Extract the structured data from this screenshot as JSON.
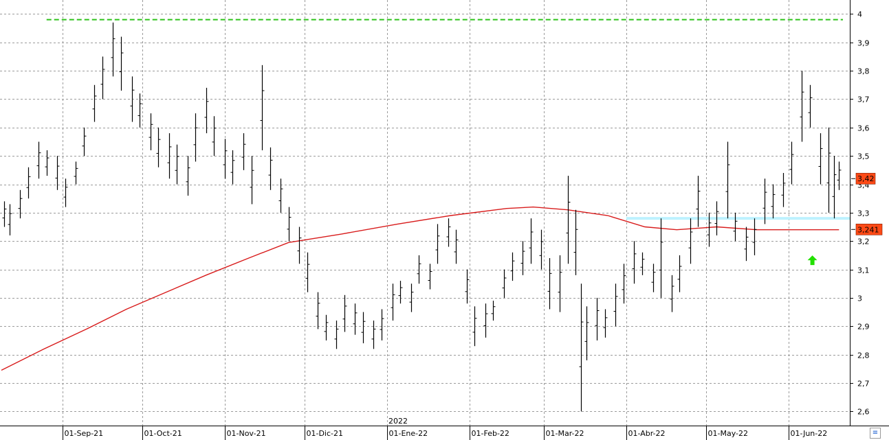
{
  "chart_data": {
    "type": "ohlc",
    "title": "",
    "xlabel": "",
    "ylabel": "",
    "ylim": [
      2.55,
      4.03
    ],
    "y_ticks": [
      "2,6",
      "2,7",
      "2,8",
      "2,9",
      "3",
      "3,1",
      "3,2",
      "3,3",
      "3,4",
      "3,5",
      "3,6",
      "3,7",
      "3,8",
      "3,9",
      "4"
    ],
    "y_tick_values": [
      2.6,
      2.7,
      2.8,
      2.9,
      3.0,
      3.1,
      3.2,
      3.3,
      3.4,
      3.5,
      3.6,
      3.7,
      3.8,
      3.9,
      4.0
    ],
    "x_start_date": "2021-08-09",
    "x_end_date": "2022-06-22",
    "x_ticks": [
      {
        "date": "2021-09-01",
        "label": "01-Sep-21"
      },
      {
        "date": "2021-10-01",
        "label": "01-Oct-21"
      },
      {
        "date": "2021-11-01",
        "label": "01-Nov-21"
      },
      {
        "date": "2021-12-01",
        "label": "01-Dic-21"
      },
      {
        "date": "2022-01-01",
        "label": "01-Ene-22"
      },
      {
        "date": "2022-02-01",
        "label": "01-Feb-22"
      },
      {
        "date": "2022-03-01",
        "label": "01-Mar-22"
      },
      {
        "date": "2022-04-01",
        "label": "01-Abr-22"
      },
      {
        "date": "2022-05-01",
        "label": "01-May-22"
      },
      {
        "date": "2022-06-01",
        "label": "01-Jun-22"
      }
    ],
    "year_marker": {
      "date": "2022-01-01",
      "label": "2022"
    },
    "grid": true,
    "price_badge": {
      "value": 3.42,
      "label": "3,42",
      "color": "#ff4a16"
    },
    "ma_badge": {
      "value": 3.241,
      "label": "3,241",
      "color": "#ff4a16"
    },
    "resistance_line": {
      "value": 3.98,
      "from": "2021-08-26",
      "color": "#2ec21a"
    },
    "support_band": {
      "value": 3.28,
      "from": "2022-04-01",
      "color": "#bdf2ff"
    },
    "arrow_up": {
      "date": "2022-06-10",
      "value": 3.13,
      "color": "#22e000"
    },
    "ma_series": {
      "name": "",
      "color": "#d81b1b",
      "points": [
        [
          "2021-08-09",
          2.745
        ],
        [
          "2021-08-25",
          2.82
        ],
        [
          "2021-09-10",
          2.89
        ],
        [
          "2021-09-25",
          2.96
        ],
        [
          "2021-10-10",
          3.02
        ],
        [
          "2021-10-25",
          3.08
        ],
        [
          "2021-11-10",
          3.14
        ],
        [
          "2021-11-25",
          3.195
        ],
        [
          "2021-12-15",
          3.225
        ],
        [
          "2022-01-05",
          3.26
        ],
        [
          "2022-01-25",
          3.29
        ],
        [
          "2022-02-15",
          3.315
        ],
        [
          "2022-02-25",
          3.32
        ],
        [
          "2022-03-10",
          3.31
        ],
        [
          "2022-03-25",
          3.29
        ],
        [
          "2022-04-08",
          3.25
        ],
        [
          "2022-04-20",
          3.24
        ],
        [
          "2022-05-05",
          3.25
        ],
        [
          "2022-05-20",
          3.24
        ],
        [
          "2022-06-05",
          3.24
        ],
        [
          "2022-06-20",
          3.24
        ]
      ]
    },
    "bars": [
      [
        "2021-08-10",
        3.25,
        3.34
      ],
      [
        "2021-08-12",
        3.22,
        3.33
      ],
      [
        "2021-08-16",
        3.28,
        3.38
      ],
      [
        "2021-08-19",
        3.35,
        3.46
      ],
      [
        "2021-08-23",
        3.42,
        3.55
      ],
      [
        "2021-08-26",
        3.43,
        3.52
      ],
      [
        "2021-08-30",
        3.38,
        3.5
      ],
      [
        "2021-09-02",
        3.32,
        3.42
      ],
      [
        "2021-09-06",
        3.4,
        3.48
      ],
      [
        "2021-09-09",
        3.5,
        3.6
      ],
      [
        "2021-09-13",
        3.62,
        3.75
      ],
      [
        "2021-09-16",
        3.7,
        3.85
      ],
      [
        "2021-09-20",
        3.78,
        3.97
      ],
      [
        "2021-09-23",
        3.73,
        3.92
      ],
      [
        "2021-09-27",
        3.62,
        3.78
      ],
      [
        "2021-09-30",
        3.6,
        3.72
      ],
      [
        "2021-10-04",
        3.52,
        3.65
      ],
      [
        "2021-10-07",
        3.46,
        3.6
      ],
      [
        "2021-10-11",
        3.42,
        3.58
      ],
      [
        "2021-10-14",
        3.4,
        3.54
      ],
      [
        "2021-10-18",
        3.36,
        3.5
      ],
      [
        "2021-10-21",
        3.48,
        3.65
      ],
      [
        "2021-10-25",
        3.58,
        3.74
      ],
      [
        "2021-10-28",
        3.5,
        3.64
      ],
      [
        "2021-11-01",
        3.42,
        3.56
      ],
      [
        "2021-11-04",
        3.4,
        3.52
      ],
      [
        "2021-11-08",
        3.45,
        3.58
      ],
      [
        "2021-11-11",
        3.33,
        3.5
      ],
      [
        "2021-11-15",
        3.52,
        3.82
      ],
      [
        "2021-11-18",
        3.38,
        3.53
      ],
      [
        "2021-11-22",
        3.3,
        3.42
      ],
      [
        "2021-11-25",
        3.2,
        3.32
      ],
      [
        "2021-11-29",
        3.12,
        3.25
      ],
      [
        "2021-12-02",
        3.02,
        3.16
      ],
      [
        "2021-12-06",
        2.89,
        3.02
      ],
      [
        "2021-12-09",
        2.85,
        2.94
      ],
      [
        "2021-12-13",
        2.82,
        2.92
      ],
      [
        "2021-12-16",
        2.88,
        3.01
      ],
      [
        "2021-12-20",
        2.87,
        2.98
      ],
      [
        "2021-12-23",
        2.84,
        2.95
      ],
      [
        "2021-12-27",
        2.82,
        2.92
      ],
      [
        "2021-12-30",
        2.85,
        2.96
      ],
      [
        "2022-01-03",
        2.92,
        3.05
      ],
      [
        "2022-01-06",
        2.98,
        3.06
      ],
      [
        "2022-01-10",
        2.95,
        3.05
      ],
      [
        "2022-01-13",
        3.05,
        3.15
      ],
      [
        "2022-01-17",
        3.03,
        3.12
      ],
      [
        "2022-01-20",
        3.12,
        3.26
      ],
      [
        "2022-01-24",
        3.18,
        3.28
      ],
      [
        "2022-01-27",
        3.12,
        3.24
      ],
      [
        "2022-01-31",
        2.98,
        3.1
      ],
      [
        "2022-02-03",
        2.83,
        2.97
      ],
      [
        "2022-02-07",
        2.86,
        2.98
      ],
      [
        "2022-02-10",
        2.92,
        2.99
      ],
      [
        "2022-02-14",
        3.0,
        3.1
      ],
      [
        "2022-02-17",
        3.06,
        3.16
      ],
      [
        "2022-02-21",
        3.08,
        3.2
      ],
      [
        "2022-02-24",
        3.12,
        3.28
      ],
      [
        "2022-02-28",
        3.1,
        3.24
      ],
      [
        "2022-03-03",
        2.96,
        3.14
      ],
      [
        "2022-03-07",
        2.95,
        3.15
      ],
      [
        "2022-03-10",
        3.12,
        3.43
      ],
      [
        "2022-03-13",
        3.08,
        3.31
      ],
      [
        "2022-03-15",
        2.6,
        3.05
      ],
      [
        "2022-03-17",
        2.78,
        2.97
      ],
      [
        "2022-03-21",
        2.85,
        3.0
      ],
      [
        "2022-03-24",
        2.86,
        2.96
      ],
      [
        "2022-03-28",
        2.9,
        3.05
      ],
      [
        "2022-03-31",
        2.98,
        3.12
      ],
      [
        "2022-04-04",
        3.05,
        3.2
      ],
      [
        "2022-04-07",
        3.08,
        3.16
      ],
      [
        "2022-04-11",
        3.02,
        3.12
      ],
      [
        "2022-04-14",
        3.0,
        3.28
      ],
      [
        "2022-04-18",
        2.95,
        3.08
      ],
      [
        "2022-04-21",
        3.02,
        3.15
      ],
      [
        "2022-04-25",
        3.12,
        3.28
      ],
      [
        "2022-04-28",
        3.25,
        3.43
      ],
      [
        "2022-05-02",
        3.18,
        3.3
      ],
      [
        "2022-05-05",
        3.22,
        3.34
      ],
      [
        "2022-05-09",
        3.28,
        3.55
      ],
      [
        "2022-05-12",
        3.2,
        3.3
      ],
      [
        "2022-05-16",
        3.13,
        3.25
      ],
      [
        "2022-05-19",
        3.15,
        3.28
      ],
      [
        "2022-05-23",
        3.26,
        3.42
      ],
      [
        "2022-05-26",
        3.28,
        3.4
      ],
      [
        "2022-05-30",
        3.32,
        3.44
      ],
      [
        "2022-06-02",
        3.4,
        3.55
      ],
      [
        "2022-06-06",
        3.55,
        3.8
      ],
      [
        "2022-06-09",
        3.6,
        3.75
      ],
      [
        "2022-06-13",
        3.4,
        3.58
      ],
      [
        "2022-06-16",
        3.3,
        3.6
      ],
      [
        "2022-06-18",
        3.28,
        3.5
      ],
      [
        "2022-06-20",
        3.38,
        3.48
      ]
    ]
  }
}
